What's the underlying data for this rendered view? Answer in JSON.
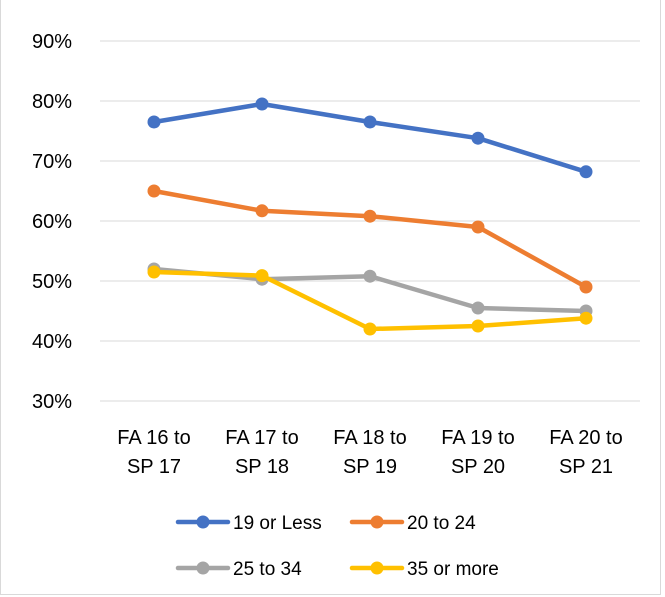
{
  "chart_data": {
    "type": "line",
    "title": "",
    "xlabel": "",
    "ylabel": "",
    "categories": [
      "FA 16 to SP 17",
      "FA 17 to SP 18",
      "FA 18 to SP 19",
      "FA 19 to SP 20",
      "FA 20 to SP 21"
    ],
    "category_lines": [
      [
        "FA 16 to",
        "SP 17"
      ],
      [
        "FA 17 to",
        "SP 18"
      ],
      [
        "FA 18 to",
        "SP 19"
      ],
      [
        "FA 19 to",
        "SP 20"
      ],
      [
        "FA 20 to",
        "SP 21"
      ]
    ],
    "ylim": [
      0.3,
      0.9
    ],
    "yticks": [
      0.3,
      0.4,
      0.5,
      0.6,
      0.7,
      0.8,
      0.9
    ],
    "ytick_labels": [
      "30%",
      "40%",
      "50%",
      "60%",
      "70%",
      "80%",
      "90%"
    ],
    "grid": true,
    "legend_position": "bottom",
    "series": [
      {
        "name": "19 or Less",
        "color": "#4472C4",
        "values": [
          0.765,
          0.795,
          0.765,
          0.738,
          0.682
        ]
      },
      {
        "name": "20 to 24",
        "color": "#ED7D31",
        "values": [
          0.65,
          0.617,
          0.608,
          0.59,
          0.49
        ]
      },
      {
        "name": "25 to 34",
        "color": "#A5A5A5",
        "values": [
          0.52,
          0.503,
          0.508,
          0.455,
          0.45
        ]
      },
      {
        "name": "35 or more",
        "color": "#FFC000",
        "values": [
          0.515,
          0.509,
          0.42,
          0.425,
          0.438
        ]
      }
    ]
  }
}
